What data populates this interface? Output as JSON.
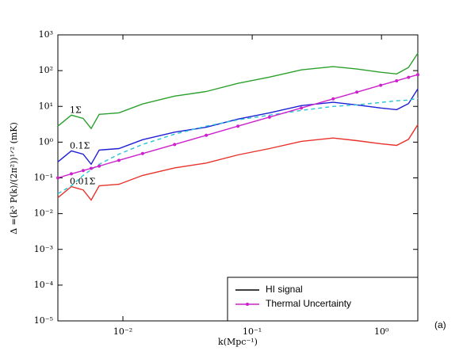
{
  "chart_data": {
    "type": "line",
    "x_label": "k(Mpc⁻¹)",
    "y_label": "Δ =(k³ P(k)/(2π²))¹ᐟ² (mK)",
    "panel_label": "(a)",
    "log_x": true,
    "log_y": true,
    "xlim": [
      0.00314,
      1.91
    ],
    "ylim": [
      1e-05,
      1000
    ],
    "xticks": [
      {
        "value": 0.01,
        "label": "10⁻²"
      },
      {
        "value": 0.1,
        "label": "10⁻¹"
      },
      {
        "value": 1,
        "label": "10⁰"
      }
    ],
    "yticks": [
      {
        "value": 1e-05,
        "label": "10⁻⁵"
      },
      {
        "value": 0.0001,
        "label": "10⁻⁴"
      },
      {
        "value": 0.001,
        "label": "10⁻³"
      },
      {
        "value": 0.01,
        "label": "10⁻²"
      },
      {
        "value": 0.1,
        "label": "10⁻¹"
      },
      {
        "value": 1,
        "label": "10⁰"
      },
      {
        "value": 10,
        "label": "10¹"
      },
      {
        "value": 100,
        "label": "10²"
      },
      {
        "value": 1000,
        "label": "10³"
      }
    ],
    "x": [
      0.00314,
      0.00399,
      0.00493,
      0.00568,
      0.00655,
      0.00931,
      0.0142,
      0.0251,
      0.0441,
      0.0776,
      0.136,
      0.24,
      0.423,
      0.645,
      0.986,
      1.31,
      1.62,
      1.91
    ],
    "series": [
      {
        "label": "1Σ",
        "color": "#2ca02c",
        "style": "solid",
        "values": [
          2.8,
          5.7,
          4.6,
          2.4,
          6.0,
          6.6,
          11.7,
          19.4,
          26,
          44,
          66,
          105,
          129,
          111,
          90,
          81,
          123,
          308
        ]
      },
      {
        "label": "0.1Σ",
        "color": "#1f1fd6",
        "style": "solid",
        "values": [
          0.28,
          0.57,
          0.46,
          0.24,
          0.6,
          0.66,
          1.17,
          1.9,
          2.6,
          4.4,
          6.6,
          10.5,
          13,
          11,
          9,
          8.1,
          12,
          31
        ]
      },
      {
        "label": "0.01Σ",
        "color": "#e8312a",
        "style": "solid",
        "values": [
          0.028,
          0.057,
          0.046,
          0.024,
          0.06,
          0.066,
          0.117,
          0.19,
          0.26,
          0.44,
          0.66,
          1.05,
          1.3,
          1.1,
          0.9,
          0.81,
          1.2,
          3.1
        ]
      },
      {
        "color": "#29c4d6",
        "style": "dashed",
        "values": [
          0.036,
          0.06,
          0.117,
          0.17,
          0.24,
          0.46,
          0.86,
          1.67,
          2.8,
          4.2,
          5.7,
          7.7,
          10,
          11,
          12.9,
          14.3,
          15,
          16.7
        ]
      },
      {
        "color": "#cc22cc",
        "style": "marker",
        "values": [
          0.1,
          0.13,
          0.16,
          0.185,
          0.214,
          0.31,
          0.48,
          0.86,
          1.55,
          2.8,
          5.0,
          9.0,
          16.2,
          25,
          39,
          52,
          65,
          77
        ]
      }
    ],
    "legend": [
      {
        "label": "HI signal",
        "color": "#000000"
      },
      {
        "label": "Thermal Uncertainty",
        "color": "#cc22cc"
      }
    ],
    "legend_position": "lower right"
  }
}
